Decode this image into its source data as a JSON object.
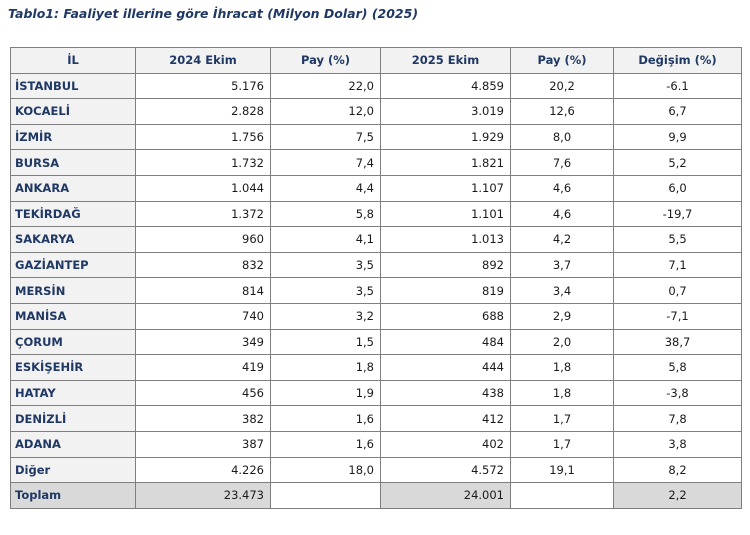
{
  "header": {
    "title": "Tablo1: Faaliyet illerine göre İhracat (Milyon Dolar) (2025)"
  },
  "table": {
    "columns": [
      "İL",
      "2024 Ekim",
      "Pay  (%)",
      "2025 Ekim",
      "Pay  (%)",
      "Değişim (%)"
    ],
    "rows": [
      [
        "İSTANBUL",
        "5.176",
        "22,0",
        "4.859",
        "20,2",
        "-6.1"
      ],
      [
        "KOCAELİ",
        "2.828",
        "12,0",
        "3.019",
        "12,6",
        "6,7"
      ],
      [
        "İZMİR",
        "1.756",
        "7,5",
        "1.929",
        "8,0",
        "9,9"
      ],
      [
        "BURSA",
        "1.732",
        "7,4",
        "1.821",
        "7,6",
        "5,2"
      ],
      [
        "ANKARA",
        "1.044",
        "4,4",
        "1.107",
        "4,6",
        "6,0"
      ],
      [
        "TEKİRDAĞ",
        "1.372",
        "5,8",
        "1.101",
        "4,6",
        "-19,7"
      ],
      [
        "SAKARYA",
        "960",
        "4,1",
        "1.013",
        "4,2",
        "5,5"
      ],
      [
        "GAZİANTEP",
        "832",
        "3,5",
        "892",
        "3,7",
        "7,1"
      ],
      [
        "MERSİN",
        "814",
        "3,5",
        "819",
        "3,4",
        "0,7"
      ],
      [
        "MANİSA",
        "740",
        "3,2",
        "688",
        "2,9",
        "-7,1"
      ],
      [
        "ÇORUM",
        "349",
        "1,5",
        "484",
        "2,0",
        "38,7"
      ],
      [
        "ESKİŞEHİR",
        "419",
        "1,8",
        "444",
        "1,8",
        "5,8"
      ],
      [
        "HATAY",
        "456",
        "1,9",
        "438",
        "1,8",
        "-3,8"
      ],
      [
        "DENİZLİ",
        "382",
        "1,6",
        "412",
        "1,7",
        "7,8"
      ],
      [
        "ADANA",
        "387",
        "1,6",
        "402",
        "1,7",
        "3,8"
      ],
      [
        "Diğer",
        "4.226",
        "18,0",
        "4.572",
        "19,1",
        "8,2"
      ],
      [
        "Toplam",
        "23.473",
        null,
        "24.001",
        null,
        "2,2"
      ]
    ]
  }
}
